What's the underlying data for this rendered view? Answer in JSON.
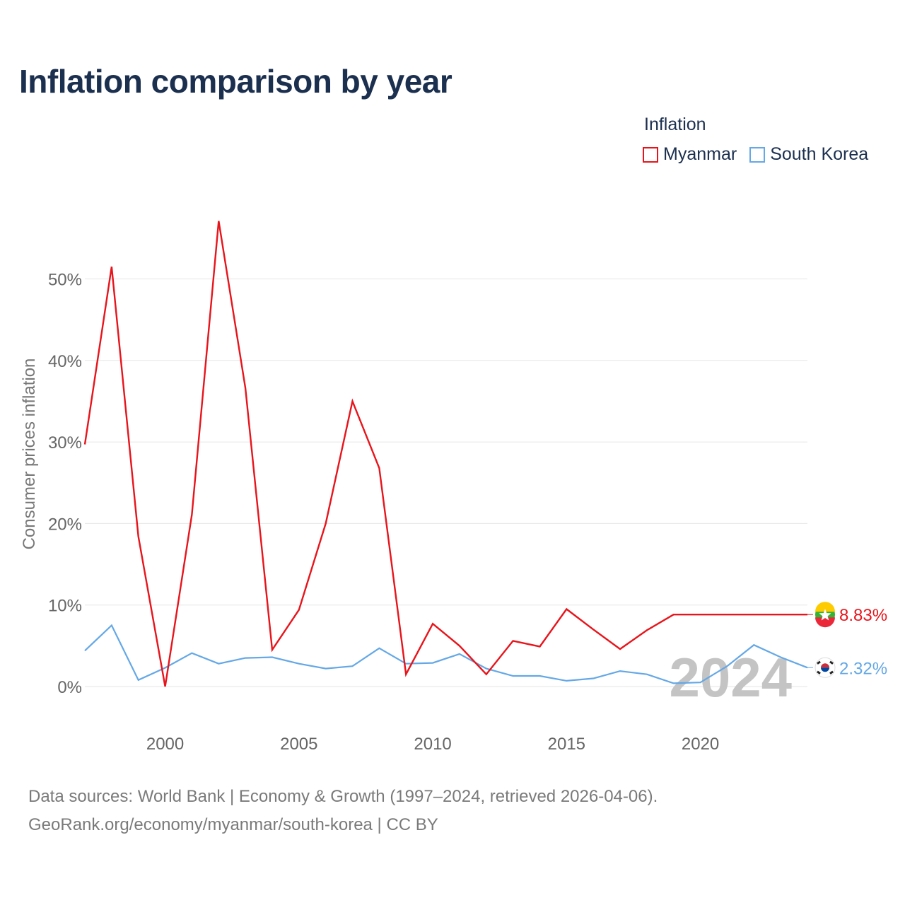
{
  "title": "Inflation comparison by year",
  "legend": {
    "title": "Inflation",
    "items": [
      {
        "name": "Myanmar",
        "color": "#e8141b"
      },
      {
        "name": "South Korea",
        "color": "#64a8e6"
      }
    ]
  },
  "chart_data": {
    "type": "line",
    "title": "Inflation comparison by year",
    "xlabel": "",
    "ylabel": "Consumer prices inflation",
    "xlim": [
      1997,
      2024
    ],
    "ylim": [
      -4,
      57
    ],
    "x_ticks": [
      2000,
      2005,
      2010,
      2015,
      2020
    ],
    "x_tick_labels": [
      "2000",
      "2005",
      "2010",
      "2015",
      "2020"
    ],
    "y_ticks": [
      0,
      10,
      20,
      30,
      40,
      50
    ],
    "y_tick_labels": [
      "0%",
      "10%",
      "20%",
      "30%",
      "40%",
      "50%"
    ],
    "grid": true,
    "x": [
      1997,
      1998,
      1999,
      2000,
      2001,
      2002,
      2003,
      2004,
      2005,
      2006,
      2007,
      2008,
      2009,
      2010,
      2011,
      2012,
      2013,
      2014,
      2015,
      2016,
      2017,
      2018,
      2019,
      2020,
      2021,
      2022,
      2023,
      2024
    ],
    "series": [
      {
        "name": "Myanmar",
        "color": "#e8141b",
        "values": [
          29.7,
          51.5,
          18.4,
          0.0,
          21.1,
          57.1,
          36.6,
          4.5,
          9.4,
          20.0,
          35.0,
          26.8,
          1.5,
          7.7,
          5.0,
          1.5,
          5.6,
          4.9,
          9.5,
          7.0,
          4.6,
          6.9,
          8.83,
          8.83,
          8.83,
          8.83,
          8.83,
          8.83
        ],
        "end_label": "8.83%",
        "flag_icon": "myanmar-flag-icon"
      },
      {
        "name": "South Korea",
        "color": "#64a8e6",
        "values": [
          4.4,
          7.5,
          0.8,
          2.3,
          4.1,
          2.8,
          3.5,
          3.6,
          2.8,
          2.2,
          2.5,
          4.7,
          2.8,
          2.9,
          4.0,
          2.2,
          1.3,
          1.3,
          0.7,
          1.0,
          1.9,
          1.5,
          0.4,
          0.5,
          2.5,
          5.1,
          3.6,
          2.32
        ],
        "end_label": "2.32%",
        "flag_icon": "south-korea-flag-icon"
      }
    ],
    "annotation": "2024"
  },
  "source": {
    "line1": "Data sources: World Bank | Economy & Growth (1997–2024, retrieved 2026-04-06).",
    "line2": "GeoRank.org/economy/myanmar/south-korea | CC BY"
  }
}
